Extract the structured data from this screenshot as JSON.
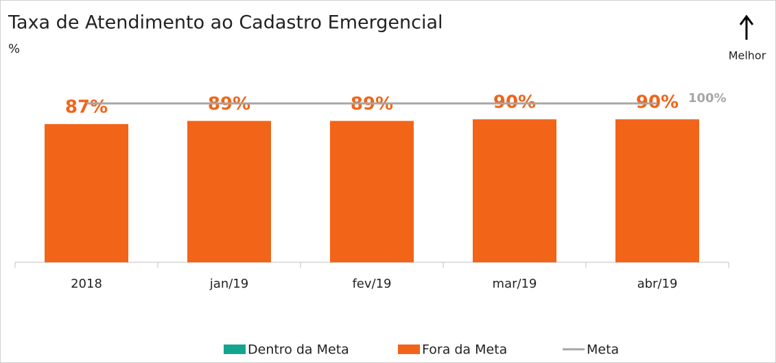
{
  "chart_data": {
    "type": "bar",
    "title": "Taxa de Atendimento ao Cadastro Emergencial",
    "subtitle": "%",
    "annotation": "Melhor",
    "categories": [
      "2018",
      "jan/19",
      "fev/19",
      "mar/19",
      "abr/19"
    ],
    "series": [
      {
        "name": "Dentro da Meta",
        "color": "#14a58e",
        "values": [
          null,
          null,
          null,
          null,
          null
        ]
      },
      {
        "name": "Fora da Meta",
        "color": "#f26418",
        "values": [
          87,
          89,
          89,
          90,
          90
        ],
        "value_labels": [
          "87%",
          "89%",
          "89%",
          "90%",
          "90%"
        ]
      },
      {
        "name": "Meta",
        "color": "#a6a6a6",
        "type": "line",
        "values": [
          100,
          100,
          100,
          100,
          100
        ],
        "value_labels": [
          null,
          null,
          null,
          null,
          "100%"
        ]
      }
    ],
    "ylim": [
      0,
      100
    ]
  }
}
